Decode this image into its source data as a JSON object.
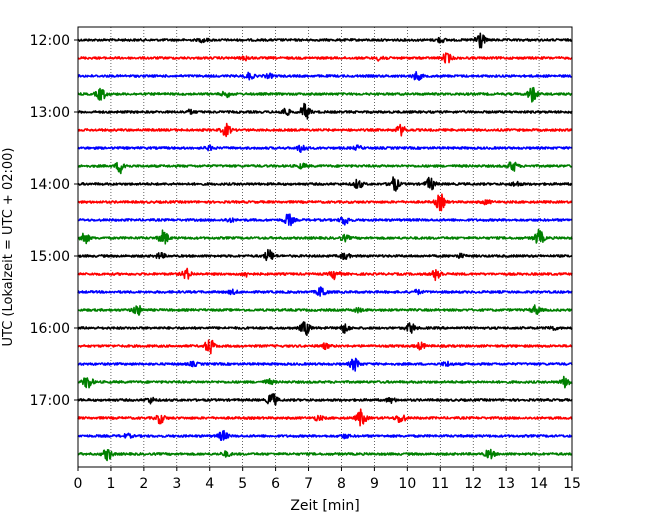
{
  "chart_data": {
    "type": "line",
    "title": "",
    "xlabel": "Zeit  [min]",
    "ylabel": "UTC (Lokalzeit = UTC + 02:00)",
    "xlim": [
      0,
      15
    ],
    "xticks": [
      0,
      1,
      2,
      3,
      4,
      5,
      6,
      7,
      8,
      9,
      10,
      11,
      12,
      13,
      14,
      15
    ],
    "yticks": [
      "12:00",
      "13:00",
      "14:00",
      "15:00",
      "16:00",
      "17:00"
    ],
    "grid": "vertical dotted",
    "trace_colors": [
      "#000000",
      "#ff0000",
      "#0000ff",
      "#008000"
    ],
    "traces": [
      {
        "start": "12:00",
        "events": [
          {
            "t": 12.2,
            "amp": 1.0
          },
          {
            "t": 11.0,
            "amp": 0.25
          },
          {
            "t": 3.8,
            "amp": 0.2
          }
        ]
      },
      {
        "start": "12:15",
        "events": [
          {
            "t": 11.2,
            "amp": 0.55
          },
          {
            "t": 9.2,
            "amp": 0.3
          },
          {
            "t": 5.1,
            "amp": 0.2
          }
        ]
      },
      {
        "start": "12:30",
        "events": [
          {
            "t": 5.2,
            "amp": 0.35
          },
          {
            "t": 10.3,
            "amp": 0.45
          },
          {
            "t": 5.8,
            "amp": 0.2
          }
        ]
      },
      {
        "start": "12:45",
        "events": [
          {
            "t": 0.7,
            "amp": 0.7
          },
          {
            "t": 13.8,
            "amp": 0.85
          },
          {
            "t": 4.5,
            "amp": 0.3
          }
        ]
      },
      {
        "start": "13:00",
        "events": [
          {
            "t": 6.9,
            "amp": 0.9
          },
          {
            "t": 6.3,
            "amp": 0.4
          },
          {
            "t": 3.4,
            "amp": 0.2
          }
        ]
      },
      {
        "start": "13:15",
        "events": [
          {
            "t": 4.5,
            "amp": 0.65
          },
          {
            "t": 9.8,
            "amp": 0.55
          }
        ]
      },
      {
        "start": "13:30",
        "events": [
          {
            "t": 6.8,
            "amp": 0.45
          },
          {
            "t": 4.0,
            "amp": 0.2
          },
          {
            "t": 8.5,
            "amp": 0.2
          }
        ]
      },
      {
        "start": "13:45",
        "events": [
          {
            "t": 1.3,
            "amp": 0.75
          },
          {
            "t": 13.2,
            "amp": 0.55
          },
          {
            "t": 6.8,
            "amp": 0.25
          }
        ]
      },
      {
        "start": "14:00",
        "events": [
          {
            "t": 9.6,
            "amp": 0.8
          },
          {
            "t": 10.7,
            "amp": 0.7
          },
          {
            "t": 8.5,
            "amp": 0.5
          },
          {
            "t": 13.3,
            "amp": 0.25
          }
        ]
      },
      {
        "start": "14:15",
        "events": [
          {
            "t": 11.0,
            "amp": 0.9
          },
          {
            "t": 12.4,
            "amp": 0.2
          }
        ]
      },
      {
        "start": "14:30",
        "events": [
          {
            "t": 8.1,
            "amp": 0.5
          },
          {
            "t": 6.4,
            "amp": 0.65
          },
          {
            "t": 4.6,
            "amp": 0.2
          }
        ]
      },
      {
        "start": "14:45",
        "events": [
          {
            "t": 0.2,
            "amp": 0.6
          },
          {
            "t": 2.6,
            "amp": 0.8
          },
          {
            "t": 14.0,
            "amp": 0.85
          },
          {
            "t": 8.1,
            "amp": 0.3
          }
        ]
      },
      {
        "start": "15:00",
        "events": [
          {
            "t": 5.8,
            "amp": 0.65
          },
          {
            "t": 2.5,
            "amp": 0.3
          },
          {
            "t": 8.1,
            "amp": 0.35
          },
          {
            "t": 11.6,
            "amp": 0.2
          }
        ]
      },
      {
        "start": "15:15",
        "events": [
          {
            "t": 7.8,
            "amp": 0.5
          },
          {
            "t": 3.3,
            "amp": 0.55
          },
          {
            "t": 10.9,
            "amp": 0.7
          },
          {
            "t": 5.1,
            "amp": 0.25
          }
        ]
      },
      {
        "start": "15:30",
        "events": [
          {
            "t": 7.4,
            "amp": 0.6
          },
          {
            "t": 4.7,
            "amp": 0.2
          },
          {
            "t": 10.3,
            "amp": 0.2
          }
        ]
      },
      {
        "start": "15:45",
        "events": [
          {
            "t": 1.8,
            "amp": 0.55
          },
          {
            "t": 13.9,
            "amp": 0.5
          },
          {
            "t": 8.5,
            "amp": 0.2
          }
        ]
      },
      {
        "start": "16:00",
        "events": [
          {
            "t": 6.9,
            "amp": 0.8
          },
          {
            "t": 8.1,
            "amp": 0.5
          },
          {
            "t": 10.1,
            "amp": 0.55
          },
          {
            "t": 14.4,
            "amp": 0.2
          }
        ]
      },
      {
        "start": "16:15",
        "events": [
          {
            "t": 4.0,
            "amp": 0.85
          },
          {
            "t": 10.4,
            "amp": 0.35
          },
          {
            "t": 7.5,
            "amp": 0.25
          }
        ]
      },
      {
        "start": "16:30",
        "events": [
          {
            "t": 8.4,
            "amp": 0.7
          },
          {
            "t": 11.2,
            "amp": 0.25
          },
          {
            "t": 3.5,
            "amp": 0.2
          }
        ]
      },
      {
        "start": "16:45",
        "events": [
          {
            "t": 0.3,
            "amp": 0.75
          },
          {
            "t": 14.8,
            "amp": 0.6
          },
          {
            "t": 5.8,
            "amp": 0.25
          }
        ]
      },
      {
        "start": "17:00",
        "events": [
          {
            "t": 5.9,
            "amp": 0.8
          },
          {
            "t": 2.2,
            "amp": 0.3
          },
          {
            "t": 9.5,
            "amp": 0.25
          }
        ]
      },
      {
        "start": "17:15",
        "events": [
          {
            "t": 8.6,
            "amp": 0.9
          },
          {
            "t": 9.8,
            "amp": 0.55
          },
          {
            "t": 2.5,
            "amp": 0.55
          },
          {
            "t": 7.3,
            "amp": 0.25
          }
        ]
      },
      {
        "start": "17:30",
        "events": [
          {
            "t": 4.4,
            "amp": 0.55
          },
          {
            "t": 8.1,
            "amp": 0.2
          },
          {
            "t": 1.5,
            "amp": 0.2
          }
        ]
      },
      {
        "start": "17:45",
        "events": [
          {
            "t": 0.9,
            "amp": 0.65
          },
          {
            "t": 12.5,
            "amp": 0.5
          },
          {
            "t": 4.5,
            "amp": 0.25
          }
        ]
      }
    ]
  }
}
